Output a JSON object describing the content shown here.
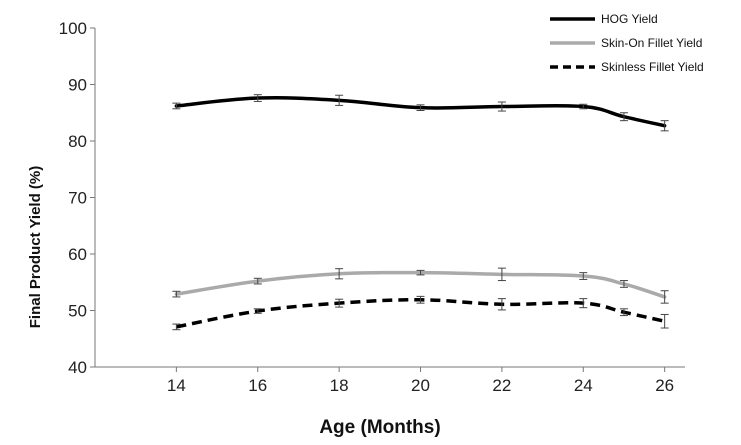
{
  "chart_data": {
    "type": "line",
    "xlabel": "Age (Months)",
    "ylabel": "Final Product Yield (%)",
    "xlim": [
      12,
      26.5
    ],
    "ylim": [
      40,
      100
    ],
    "x_ticks": [
      14,
      16,
      18,
      20,
      22,
      24,
      26
    ],
    "y_ticks": [
      40,
      50,
      60,
      70,
      80,
      90,
      100
    ],
    "grid": false,
    "legend_position": "top-right",
    "series": [
      {
        "name": "HOG Yield",
        "color": "#000000",
        "dash": "solid",
        "x": [
          14,
          16,
          18,
          20,
          22,
          24,
          25,
          26
        ],
        "y": [
          86.2,
          87.6,
          87.2,
          85.9,
          86.1,
          86.1,
          84.3,
          82.7
        ],
        "err": [
          0.5,
          0.6,
          0.9,
          0.5,
          0.8,
          0.4,
          0.7,
          0.9
        ]
      },
      {
        "name": "Skin-On Fillet Yield",
        "color": "#aaaaaa",
        "dash": "solid",
        "x": [
          14,
          16,
          18,
          20,
          22,
          24,
          25,
          26
        ],
        "y": [
          52.9,
          55.2,
          56.5,
          56.7,
          56.4,
          56.1,
          54.7,
          52.4
        ],
        "err": [
          0.5,
          0.5,
          0.9,
          0.4,
          1.1,
          0.6,
          0.6,
          1.1
        ]
      },
      {
        "name": "Skinless Fillet Yield",
        "color": "#000000",
        "dash": "dashed",
        "x": [
          14,
          16,
          18,
          20,
          22,
          24,
          25,
          26
        ],
        "y": [
          47.1,
          49.9,
          51.3,
          51.9,
          51.1,
          51.3,
          49.7,
          48.1
        ],
        "err": [
          0.5,
          0.4,
          0.7,
          0.6,
          1.0,
          0.8,
          0.6,
          1.2
        ]
      }
    ]
  }
}
